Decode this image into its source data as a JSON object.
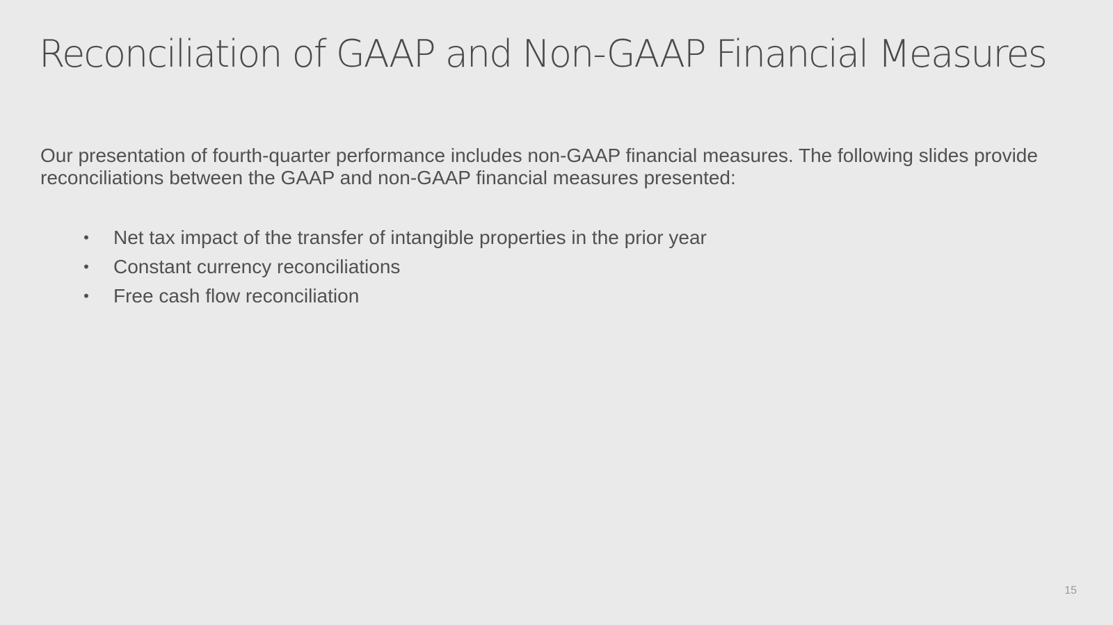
{
  "slide": {
    "title": "Reconciliation of GAAP and Non-GAAP Financial Measures",
    "intro": "Our presentation of fourth-quarter performance includes non-GAAP financial measures. The following slides provide reconciliations between the GAAP and non-GAAP financial measures presented:",
    "bullet_symbol": "•",
    "bullets": [
      "Net tax impact of the transfer of intangible properties in the prior year",
      "Constant currency reconciliations",
      "Free cash flow reconciliation"
    ],
    "page_number": "15"
  },
  "colors": {
    "background": "#eaeaea",
    "text": "#505050",
    "page_number": "#9a9a9a"
  }
}
